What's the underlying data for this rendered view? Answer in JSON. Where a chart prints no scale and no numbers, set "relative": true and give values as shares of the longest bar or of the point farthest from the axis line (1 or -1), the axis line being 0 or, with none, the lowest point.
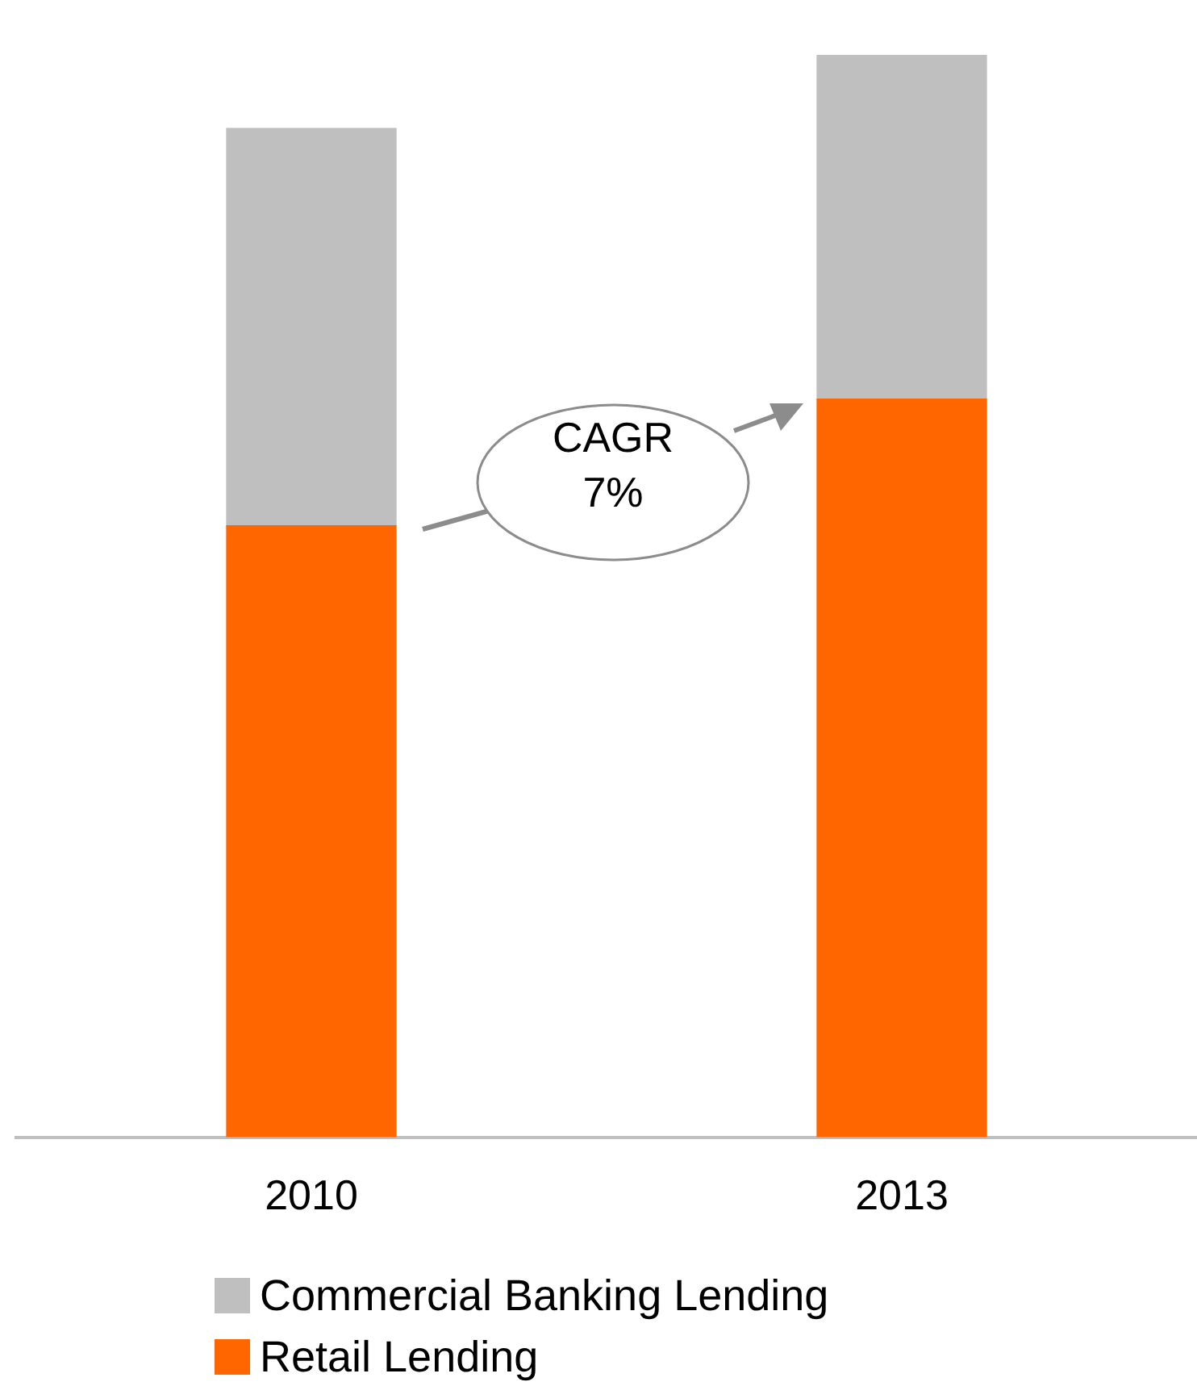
{
  "chart_data": {
    "type": "bar",
    "stacked": true,
    "relative": true,
    "categories": [
      "2010",
      "2013"
    ],
    "series": [
      {
        "name": "Retail Lending",
        "color": "#ff6600",
        "values": [
          0.565,
          0.682
        ]
      },
      {
        "name": "Commercial Banking Lending",
        "color": "#bfbfbf",
        "values": [
          0.367,
          0.318
        ]
      }
    ],
    "legend": "bottom",
    "grid": false,
    "annotations": [
      "CAGR\n7%"
    ]
  }
}
